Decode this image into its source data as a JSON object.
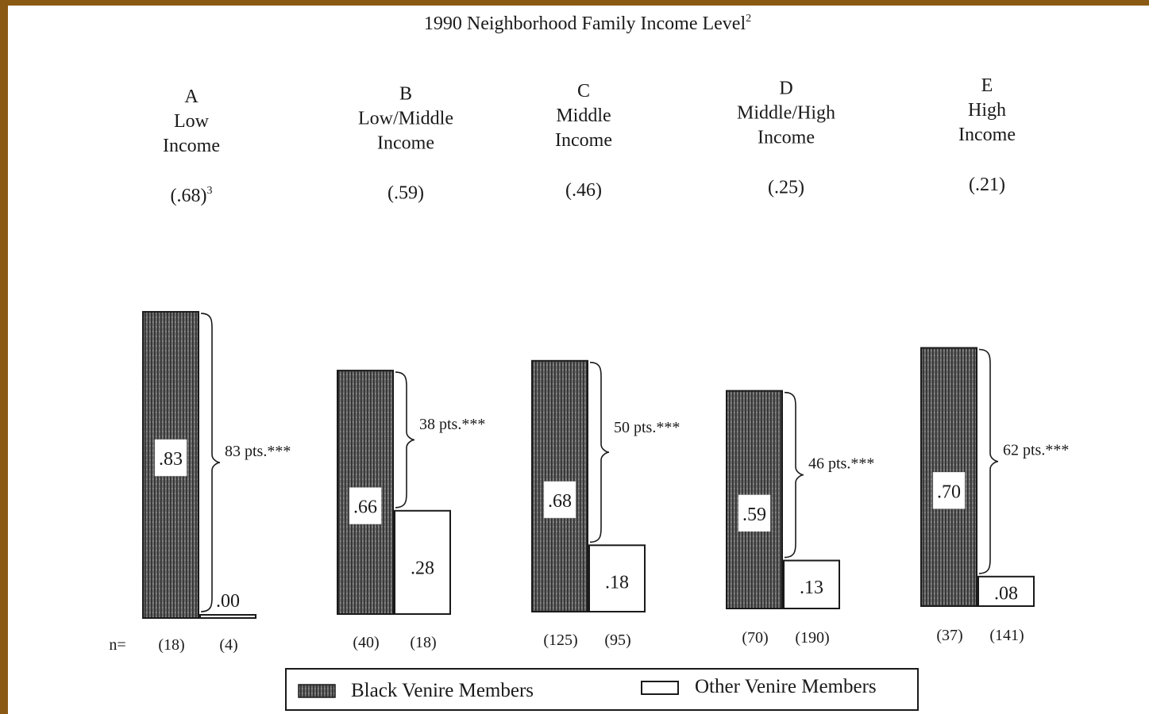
{
  "chart_data": {
    "type": "bar",
    "title": "1990 Neighborhood Family Income Level",
    "title_superscript": "2",
    "n_label": "n=",
    "categories": [
      {
        "letter": "A",
        "label_lines": [
          "Low",
          "Income"
        ],
        "index_value": "(.68)",
        "index_superscript": "3"
      },
      {
        "letter": "B",
        "label_lines": [
          "Low/Middle",
          "Income"
        ],
        "index_value": "(.59)",
        "index_superscript": ""
      },
      {
        "letter": "C",
        "label_lines": [
          "Middle",
          "Income"
        ],
        "index_value": "(.46)",
        "index_superscript": ""
      },
      {
        "letter": "D",
        "label_lines": [
          "Middle/High",
          "Income"
        ],
        "index_value": "(.25)",
        "index_superscript": ""
      },
      {
        "letter": "E",
        "label_lines": [
          "High",
          "Income"
        ],
        "index_value": "(.21)",
        "index_superscript": ""
      }
    ],
    "series": [
      {
        "name": "Black Venire Members",
        "values": [
          0.83,
          0.66,
          0.68,
          0.59,
          0.7
        ],
        "value_labels": [
          ".83",
          ".66",
          ".68",
          ".59",
          ".70"
        ],
        "n": [
          "(18)",
          "(40)",
          "(125)",
          "(70)",
          "(37)"
        ],
        "fill": "hatched-dark"
      },
      {
        "name": "Other Venire Members",
        "values": [
          0.0,
          0.28,
          0.18,
          0.13,
          0.08
        ],
        "value_labels": [
          ".00",
          ".28",
          ".18",
          ".13",
          ".08"
        ],
        "n": [
          "(4)",
          "(18)",
          "(95)",
          "(190)",
          "(141)"
        ],
        "fill": "white"
      }
    ],
    "differences": [
      "83 pts.***",
      "38 pts.***",
      "50 pts.***",
      "46 pts.***",
      "62 pts.***"
    ],
    "ylim": [
      0,
      1
    ],
    "legend_position": "bottom",
    "colors": {
      "dark_bar": "#5a5a5a",
      "outline": "#1a1a1a",
      "background": "#ffffff",
      "frame": "#8a5a14"
    }
  }
}
